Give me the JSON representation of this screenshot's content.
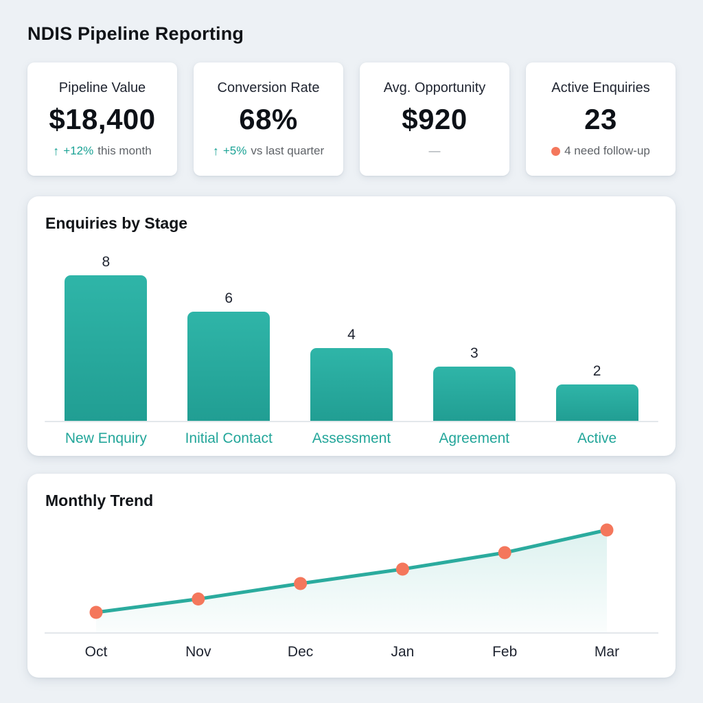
{
  "page": {
    "title": "NDIS Pipeline Reporting"
  },
  "colors": {
    "teal_accent": "#1FA99C",
    "bar_teal_top": "#2FB5A8",
    "bar_teal_bottom": "#219E93",
    "coral": "#F4775C",
    "text_dark": "#16191F",
    "text_gray": "#5F6368",
    "card_bg": "#FFFFFF",
    "page_bg": "#EDF1F5",
    "baseline_gray": "#E3E7EB"
  },
  "kpis": [
    {
      "label": "Pipeline Value",
      "value": "$18,400",
      "delta_icon": "↑",
      "delta": "+12%",
      "suffix": "this month"
    },
    {
      "label": "Conversion Rate",
      "value": "68%",
      "delta_icon": "↑",
      "delta": "+5%",
      "suffix": "vs last quarter"
    },
    {
      "label": "Avg. Opportunity",
      "value": "$920",
      "delta_icon": "",
      "delta": "",
      "suffix": "—"
    },
    {
      "label": "Active Enquiries",
      "value": "23",
      "delta_icon": "dot",
      "delta": "",
      "suffix": "4 need follow-up"
    }
  ],
  "chart_data": [
    {
      "type": "bar",
      "title": "Enquiries by Stage",
      "categories": [
        "New Enquiry",
        "Initial Contact",
        "Assessment",
        "Agreement",
        "Active"
      ],
      "values": [
        8,
        6,
        4,
        3,
        2
      ],
      "xlabel": "",
      "ylabel": "",
      "ylim": [
        0,
        8
      ],
      "grid": false,
      "value_labels_shown": true,
      "bar_color": "#24A89B",
      "category_label_color": "#23A69A"
    },
    {
      "type": "line",
      "title": "Monthly Trend",
      "x": [
        "Oct",
        "Nov",
        "Dec",
        "Jan",
        "Feb",
        "Mar"
      ],
      "values": [
        2,
        3.3,
        4.8,
        6.2,
        7.8,
        10
      ],
      "note": "No y-axis labels visible; values estimated from point heights (steadily rising trend).",
      "xlabel": "",
      "ylabel": "",
      "ylim": [
        0,
        11
      ],
      "grid": false,
      "legend": false,
      "line_color": "#2BAB9E",
      "marker_color": "#F4775C",
      "area_fill": true
    }
  ]
}
